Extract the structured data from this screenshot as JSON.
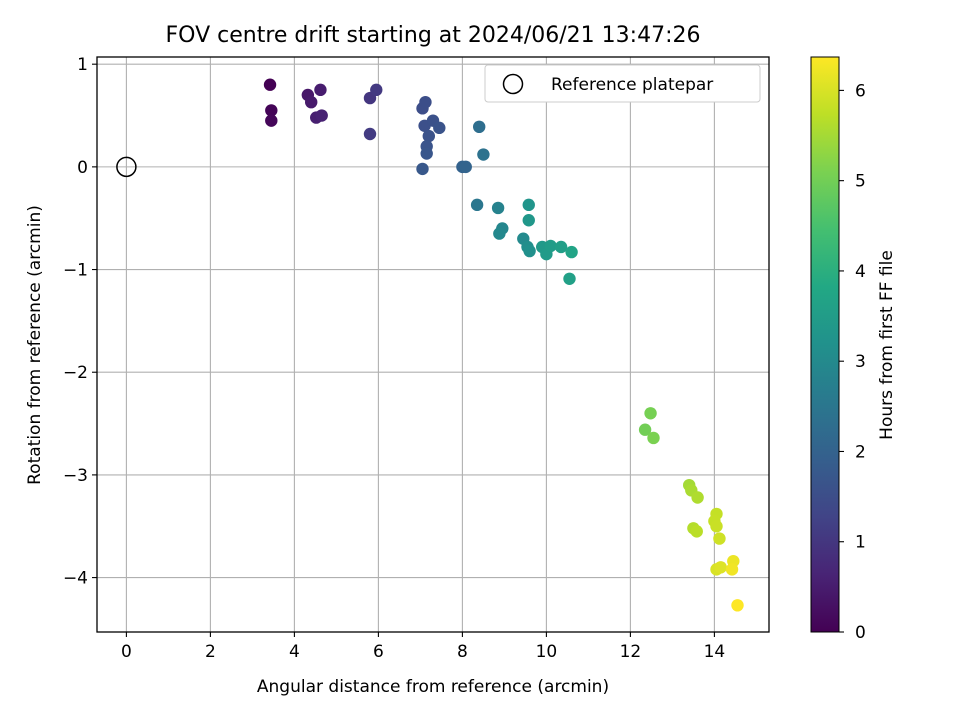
{
  "chart_data": {
    "type": "scatter",
    "title": "FOV centre drift starting at 2024/06/21 13:47:26",
    "xlabel": "Angular distance from reference (arcmin)",
    "ylabel": "Rotation from reference (arcmin)",
    "xlim": [
      -0.7,
      15.3
    ],
    "ylim": [
      -4.53,
      1.07
    ],
    "xticks": [
      0,
      2,
      4,
      6,
      8,
      10,
      12,
      14
    ],
    "yticks": [
      1,
      0,
      -1,
      -2,
      -3,
      -4
    ],
    "xtick_labels": [
      "0",
      "2",
      "4",
      "6",
      "8",
      "10",
      "12",
      "14"
    ],
    "ytick_labels": [
      "1",
      "0",
      "−1",
      "−2",
      "−3",
      "−4"
    ],
    "grid": true,
    "legend": {
      "position": "top-right",
      "entries": [
        "Reference platepar"
      ]
    },
    "reference_point": {
      "x": 0,
      "y": 0
    },
    "colorbar": {
      "label": "Hours from first FF file",
      "range": [
        0,
        6.37
      ],
      "ticks": [
        0,
        1,
        2,
        3,
        4,
        5,
        6
      ],
      "tick_labels": [
        "0",
        "1",
        "2",
        "3",
        "4",
        "5",
        "6"
      ],
      "colormap": "viridis"
    },
    "points": [
      {
        "x": 3.42,
        "y": 0.8,
        "h": 0.0
      },
      {
        "x": 3.45,
        "y": 0.55,
        "h": 0.05
      },
      {
        "x": 3.45,
        "y": 0.45,
        "h": 0.1
      },
      {
        "x": 4.32,
        "y": 0.7,
        "h": 0.4
      },
      {
        "x": 4.4,
        "y": 0.63,
        "h": 0.45
      },
      {
        "x": 4.62,
        "y": 0.75,
        "h": 0.5
      },
      {
        "x": 4.52,
        "y": 0.48,
        "h": 0.55
      },
      {
        "x": 4.65,
        "y": 0.5,
        "h": 0.6
      },
      {
        "x": 5.8,
        "y": 0.67,
        "h": 1.0
      },
      {
        "x": 5.95,
        "y": 0.75,
        "h": 1.05
      },
      {
        "x": 5.8,
        "y": 0.32,
        "h": 1.1
      },
      {
        "x": 7.05,
        "y": 0.57,
        "h": 1.5
      },
      {
        "x": 7.12,
        "y": 0.63,
        "h": 1.52
      },
      {
        "x": 7.1,
        "y": 0.4,
        "h": 1.55
      },
      {
        "x": 7.3,
        "y": 0.45,
        "h": 1.58
      },
      {
        "x": 7.2,
        "y": 0.3,
        "h": 1.6
      },
      {
        "x": 7.45,
        "y": 0.38,
        "h": 1.62
      },
      {
        "x": 7.15,
        "y": 0.2,
        "h": 1.65
      },
      {
        "x": 7.15,
        "y": 0.13,
        "h": 1.7
      },
      {
        "x": 7.05,
        "y": -0.02,
        "h": 1.75
      },
      {
        "x": 8.0,
        "y": 0.0,
        "h": 2.0
      },
      {
        "x": 8.08,
        "y": 0.0,
        "h": 2.05
      },
      {
        "x": 8.4,
        "y": 0.39,
        "h": 2.3
      },
      {
        "x": 8.5,
        "y": 0.12,
        "h": 2.4
      },
      {
        "x": 8.35,
        "y": -0.37,
        "h": 2.5
      },
      {
        "x": 8.85,
        "y": -0.4,
        "h": 2.8
      },
      {
        "x": 8.95,
        "y": -0.6,
        "h": 2.9
      },
      {
        "x": 8.88,
        "y": -0.65,
        "h": 2.95
      },
      {
        "x": 9.45,
        "y": -0.7,
        "h": 3.0
      },
      {
        "x": 9.55,
        "y": -0.78,
        "h": 3.1
      },
      {
        "x": 9.6,
        "y": -0.82,
        "h": 3.15
      },
      {
        "x": 9.58,
        "y": -0.37,
        "h": 3.3
      },
      {
        "x": 9.58,
        "y": -0.52,
        "h": 3.35
      },
      {
        "x": 9.9,
        "y": -0.78,
        "h": 3.4
      },
      {
        "x": 10.0,
        "y": -0.85,
        "h": 3.45
      },
      {
        "x": 10.1,
        "y": -0.77,
        "h": 3.5
      },
      {
        "x": 10.35,
        "y": -0.78,
        "h": 3.55
      },
      {
        "x": 10.6,
        "y": -0.83,
        "h": 3.7
      },
      {
        "x": 10.55,
        "y": -1.09,
        "h": 3.6
      },
      {
        "x": 12.35,
        "y": -2.56,
        "h": 5.0
      },
      {
        "x": 12.48,
        "y": -2.4,
        "h": 5.05
      },
      {
        "x": 12.55,
        "y": -2.64,
        "h": 5.1
      },
      {
        "x": 13.4,
        "y": -3.1,
        "h": 5.5
      },
      {
        "x": 13.45,
        "y": -3.15,
        "h": 5.55
      },
      {
        "x": 13.6,
        "y": -3.22,
        "h": 5.6
      },
      {
        "x": 13.5,
        "y": -3.52,
        "h": 5.65
      },
      {
        "x": 13.58,
        "y": -3.55,
        "h": 5.7
      },
      {
        "x": 14.05,
        "y": -3.38,
        "h": 5.8
      },
      {
        "x": 14.0,
        "y": -3.45,
        "h": 5.82
      },
      {
        "x": 14.05,
        "y": -3.5,
        "h": 5.85
      },
      {
        "x": 14.12,
        "y": -3.62,
        "h": 5.9
      },
      {
        "x": 14.05,
        "y": -3.92,
        "h": 6.0
      },
      {
        "x": 14.15,
        "y": -3.9,
        "h": 6.05
      },
      {
        "x": 14.45,
        "y": -3.84,
        "h": 6.2
      },
      {
        "x": 14.42,
        "y": -3.92,
        "h": 6.25
      },
      {
        "x": 14.55,
        "y": -4.27,
        "h": 6.37
      }
    ]
  }
}
